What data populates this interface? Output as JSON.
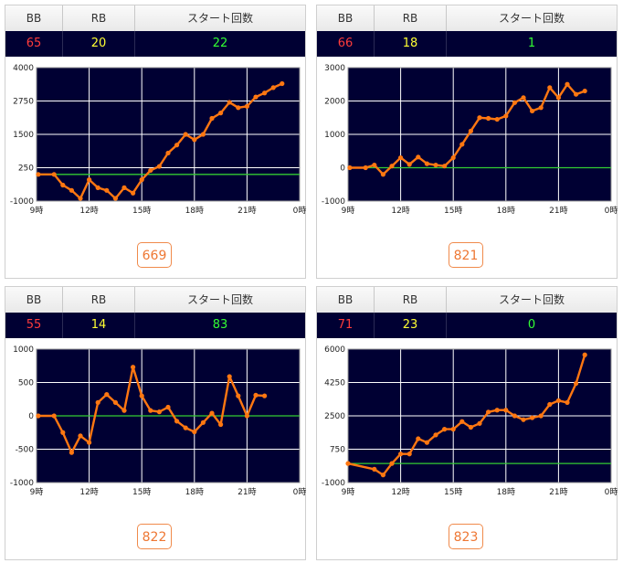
{
  "headers": {
    "bb": "BB",
    "rb": "RB",
    "start": "スタート回数"
  },
  "colors": {
    "bb": "#ff3b3b",
    "rb": "#ffff33",
    "start": "#33ff33",
    "plot_bg": "#000033",
    "line": "#ff7711",
    "zero_line": "#33cc33",
    "grid": "#ffffff"
  },
  "machines": [
    {
      "number": "669",
      "bb": "65",
      "rb": "20",
      "start": "22"
    },
    {
      "number": "821",
      "bb": "66",
      "rb": "18",
      "start": "1"
    },
    {
      "number": "822",
      "bb": "55",
      "rb": "14",
      "start": "83"
    },
    {
      "number": "823",
      "bb": "71",
      "rb": "23",
      "start": "0"
    }
  ],
  "chart_data": [
    {
      "type": "line",
      "x_labels": [
        "9時",
        "12時",
        "15時",
        "18時",
        "21時",
        "0時"
      ],
      "xlim": [
        9,
        24
      ],
      "ylim": [
        -1000,
        4000
      ],
      "y_ticks": [
        "4000",
        "2750",
        "1500",
        "250",
        "-1000"
      ],
      "y_tick_values": [
        4000,
        2750,
        1500,
        250,
        -1000
      ],
      "baseline": 0,
      "grid": true,
      "x": [
        9.1,
        10.0,
        10.5,
        11.0,
        11.5,
        12.0,
        12.5,
        13.0,
        13.5,
        14.0,
        14.5,
        15.0,
        15.5,
        16.0,
        16.5,
        17.0,
        17.5,
        18.0,
        18.5,
        19.0,
        19.5,
        20.0,
        20.5,
        21.0,
        21.5,
        22.0,
        22.5,
        23.0
      ],
      "values": [
        0,
        0,
        -400,
        -600,
        -900,
        -200,
        -500,
        -600,
        -900,
        -500,
        -700,
        -200,
        150,
        300,
        800,
        1100,
        1500,
        1300,
        1500,
        2100,
        2300,
        2700,
        2500,
        2550,
        2900,
        3050,
        3250,
        3400
      ]
    },
    {
      "type": "line",
      "x_labels": [
        "9時",
        "12時",
        "15時",
        "18時",
        "21時",
        "0時"
      ],
      "xlim": [
        9,
        24
      ],
      "ylim": [
        -1000,
        3000
      ],
      "y_ticks": [
        "3000",
        "2000",
        "1000",
        "0",
        "-1000"
      ],
      "y_tick_values": [
        3000,
        2000,
        1000,
        0,
        -1000
      ],
      "baseline": 0,
      "grid": true,
      "x": [
        9.1,
        10.0,
        10.5,
        11.0,
        11.5,
        12.0,
        12.5,
        13.0,
        13.5,
        14.0,
        14.5,
        15.0,
        15.5,
        16.0,
        16.5,
        17.0,
        17.5,
        18.0,
        18.5,
        19.0,
        19.5,
        20.0,
        20.5,
        21.0,
        21.5,
        22.0,
        22.5
      ],
      "values": [
        0,
        0,
        80,
        -200,
        50,
        300,
        100,
        320,
        120,
        80,
        50,
        300,
        700,
        1100,
        1500,
        1480,
        1450,
        1550,
        1950,
        2100,
        1700,
        1800,
        2400,
        2100,
        2500,
        2200,
        2300
      ]
    },
    {
      "type": "line",
      "x_labels": [
        "9時",
        "12時",
        "15時",
        "18時",
        "21時",
        "0時"
      ],
      "xlim": [
        9,
        24
      ],
      "ylim": [
        -1000,
        1000
      ],
      "y_ticks": [
        "1000",
        "500",
        "0",
        "-500",
        "-1000"
      ],
      "y_tick_values": [
        1000,
        500,
        0,
        -500,
        -1000
      ],
      "baseline": 0,
      "grid": true,
      "x": [
        9.1,
        10.0,
        10.5,
        11.0,
        11.5,
        12.0,
        12.5,
        13.0,
        13.5,
        14.0,
        14.5,
        15.0,
        15.5,
        16.0,
        16.5,
        17.0,
        17.5,
        18.0,
        18.5,
        19.0,
        19.5,
        20.0,
        20.5,
        21.0,
        21.5,
        22.0
      ],
      "values": [
        0,
        0,
        -250,
        -550,
        -300,
        -400,
        200,
        320,
        200,
        80,
        730,
        300,
        80,
        60,
        130,
        -80,
        -180,
        -240,
        -100,
        40,
        -130,
        590,
        300,
        0,
        310,
        300
      ]
    },
    {
      "type": "line",
      "x_labels": [
        "9時",
        "12時",
        "15時",
        "18時",
        "21時",
        "0時"
      ],
      "xlim": [
        9,
        24
      ],
      "ylim": [
        -1000,
        6000
      ],
      "y_ticks": [
        "6000",
        "4250",
        "2500",
        "750",
        "-1000"
      ],
      "y_tick_values": [
        6000,
        4250,
        2500,
        750,
        -1000
      ],
      "baseline": 0,
      "grid": true,
      "x": [
        9.0,
        10.5,
        11.0,
        11.5,
        12.0,
        12.5,
        13.0,
        13.5,
        14.0,
        14.5,
        15.0,
        15.5,
        16.0,
        16.5,
        17.0,
        17.5,
        18.0,
        18.5,
        19.0,
        19.5,
        20.0,
        20.5,
        21.0,
        21.5,
        22.0,
        22.5
      ],
      "values": [
        0,
        -300,
        -600,
        0,
        500,
        500,
        1300,
        1100,
        1500,
        1800,
        1800,
        2200,
        1900,
        2100,
        2700,
        2800,
        2800,
        2500,
        2300,
        2400,
        2500,
        3100,
        3300,
        3200,
        4200,
        5700
      ]
    }
  ]
}
